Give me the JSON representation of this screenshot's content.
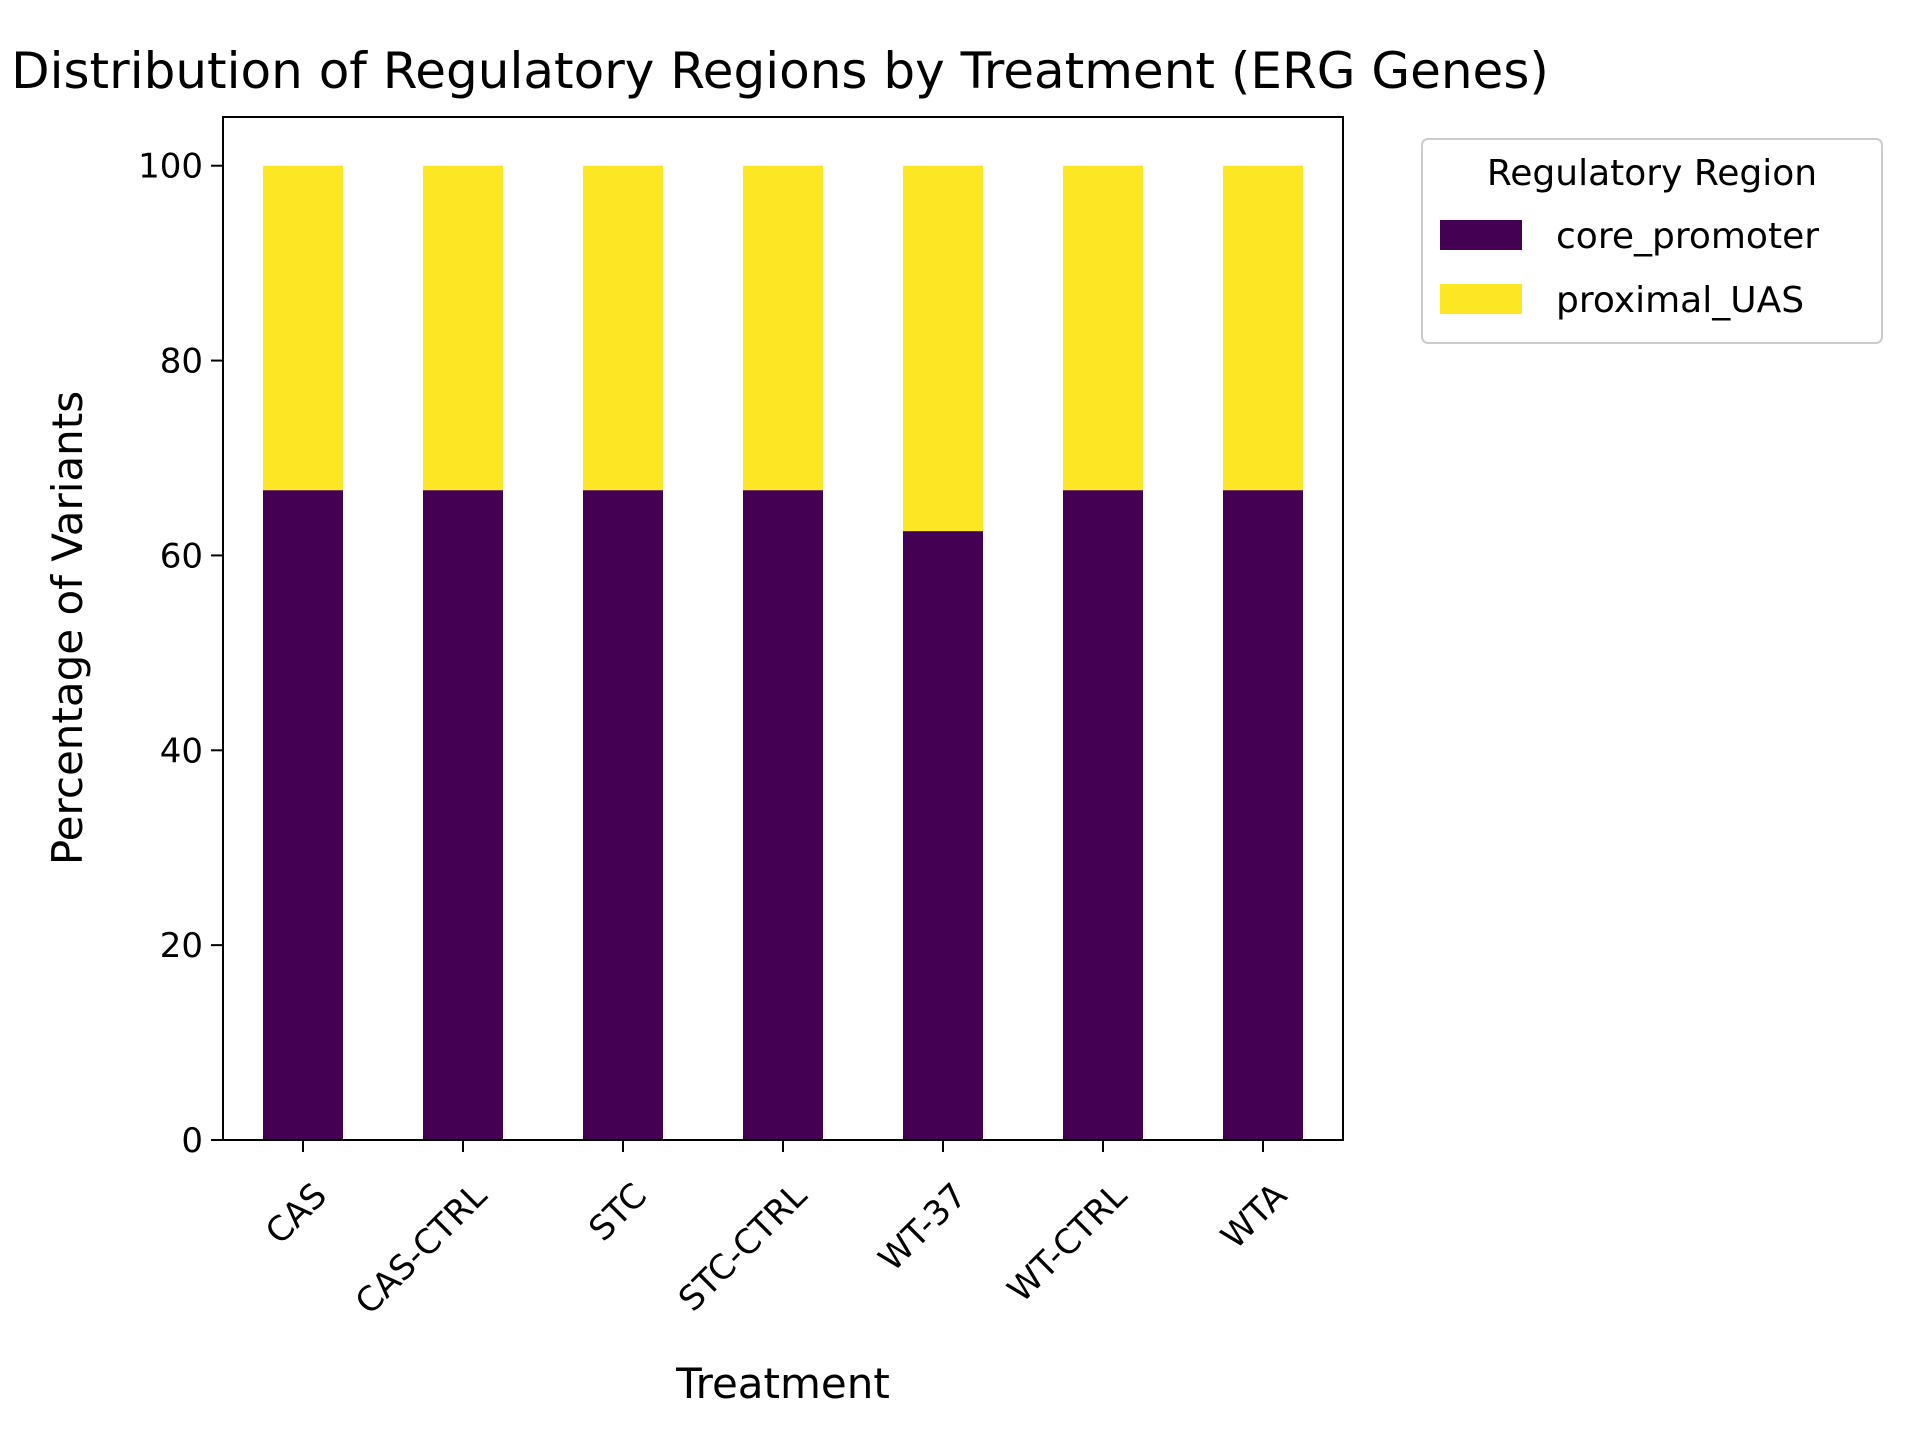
{
  "chart_data": {
    "type": "bar",
    "stacked": true,
    "title": "Distribution of Regulatory Regions by Treatment (ERG Genes)",
    "xlabel": "Treatment",
    "ylabel": "Percentage of Variants",
    "categories": [
      "CAS",
      "CAS-CTRL",
      "STC",
      "STC-CTRL",
      "WT-37",
      "WT-CTRL",
      "WTA"
    ],
    "series": [
      {
        "name": "core_promoter",
        "color": "#440154",
        "values": [
          66.7,
          66.7,
          66.7,
          66.7,
          62.5,
          66.7,
          66.7
        ]
      },
      {
        "name": "proximal_UAS",
        "color": "#fde725",
        "values": [
          33.3,
          33.3,
          33.3,
          33.3,
          37.5,
          33.3,
          33.3
        ]
      }
    ],
    "ylim": [
      0,
      105
    ],
    "yticks": [
      0,
      20,
      40,
      60,
      80,
      100
    ],
    "grid": false,
    "legend": {
      "title": "Regulatory Region",
      "placement": "outside-upper-right"
    }
  }
}
